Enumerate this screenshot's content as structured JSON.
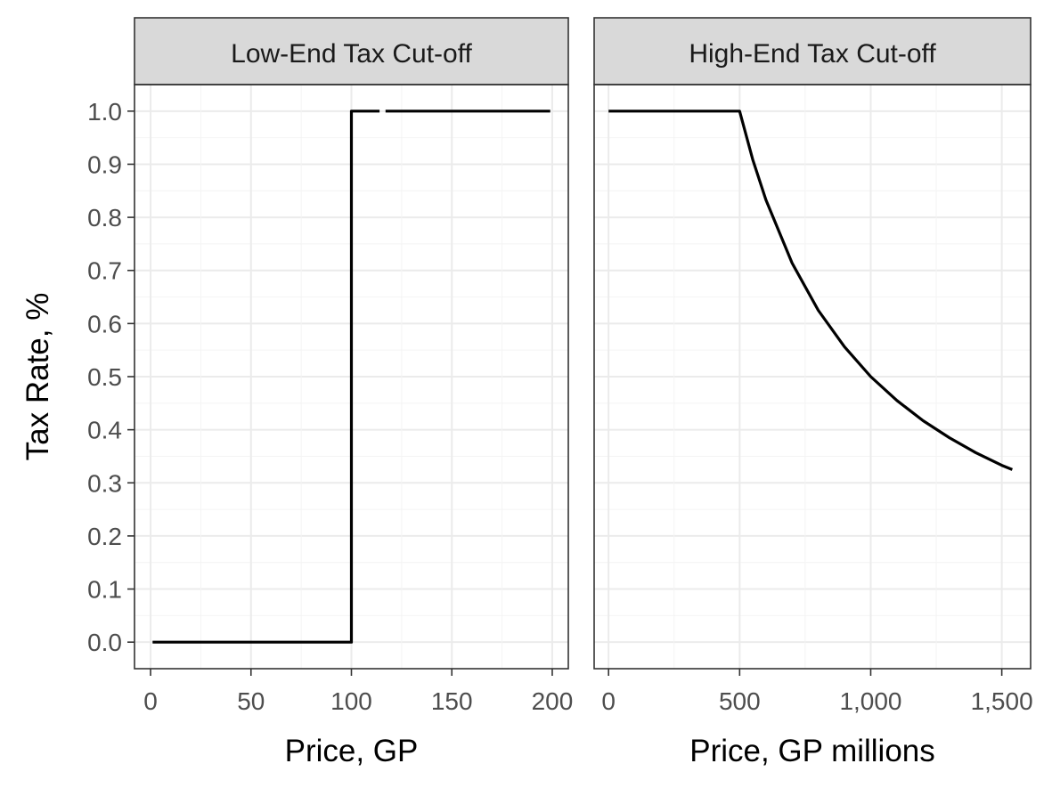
{
  "chart_data": {
    "type": "line",
    "ylabel": "Tax Rate, %",
    "ylim": [
      -0.05,
      1.05
    ],
    "y_ticks": [
      0.0,
      0.1,
      0.2,
      0.3,
      0.4,
      0.5,
      0.6,
      0.7,
      0.8,
      0.9,
      1.0
    ],
    "y_tick_labels": [
      "0.0",
      "0.1",
      "0.2",
      "0.3",
      "0.4",
      "0.5",
      "0.6",
      "0.7",
      "0.8",
      "0.9",
      "1.0"
    ],
    "grid": true,
    "panels": [
      {
        "title": "Low-End Tax Cut-off",
        "xlabel": "Price, GP",
        "xlim": [
          -8,
          208
        ],
        "x_ticks": [
          0,
          50,
          100,
          150,
          200
        ],
        "x_tick_labels": [
          "0",
          "50",
          "100",
          "150",
          "200"
        ],
        "series": [
          {
            "x": [
              1,
              100,
              100,
              114
            ],
            "y": [
              0.0,
              0.0,
              1.0,
              1.0
            ]
          },
          {
            "x": [
              117,
              199
            ],
            "y": [
              1.0,
              1.0
            ]
          }
        ]
      },
      {
        "title": "High-End Tax Cut-off",
        "xlabel": "Price, GP millions",
        "xlim": [
          -55,
          1610
        ],
        "x_ticks": [
          0,
          500,
          1000,
          1500
        ],
        "x_tick_labels": [
          "0",
          "500",
          "1,000",
          "1,500"
        ],
        "series": [
          {
            "x": [
              0,
              100,
              200,
              300,
              400,
              500,
              550,
              600,
              700,
              800,
              900,
              1000,
              1100,
              1200,
              1300,
              1400,
              1500,
              1540
            ],
            "y": [
              1.0,
              1.0,
              1.0,
              1.0,
              1.0,
              1.0,
              0.909,
              0.833,
              0.714,
              0.625,
              0.556,
              0.5,
              0.455,
              0.417,
              0.385,
              0.357,
              0.333,
              0.325
            ]
          }
        ]
      }
    ]
  }
}
